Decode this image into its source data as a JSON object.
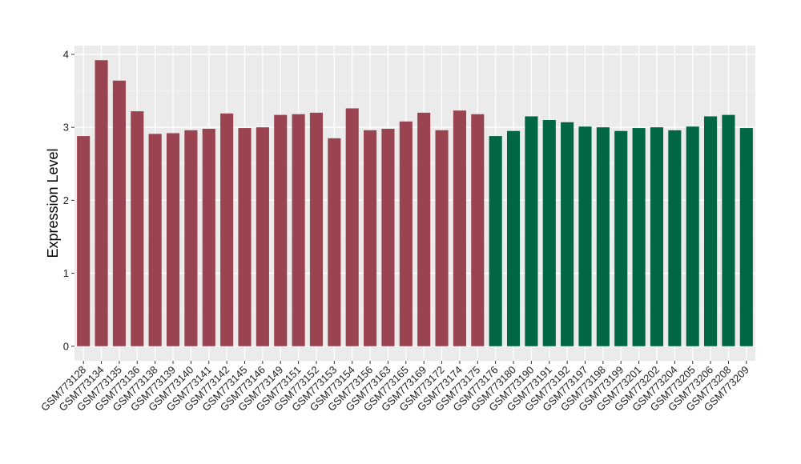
{
  "chart_data": {
    "type": "bar",
    "title": "",
    "xlabel": "",
    "ylabel": "Expression Level",
    "ylim": [
      -0.2,
      4.12
    ],
    "yticks": [
      0,
      1,
      2,
      3,
      4
    ],
    "grid": true,
    "background": "#ebebeb",
    "categories": [
      "GSM773128",
      "GSM773134",
      "GSM773135",
      "GSM773136",
      "GSM773138",
      "GSM773139",
      "GSM773140",
      "GSM773141",
      "GSM773142",
      "GSM773145",
      "GSM773146",
      "GSM773149",
      "GSM773151",
      "GSM773152",
      "GSM773153",
      "GSM773154",
      "GSM773156",
      "GSM773163",
      "GSM773165",
      "GSM773169",
      "GSM773172",
      "GSM773174",
      "GSM773175",
      "GSM773176",
      "GSM773180",
      "GSM773190",
      "GSM773191",
      "GSM773192",
      "GSM773197",
      "GSM773198",
      "GSM773199",
      "GSM773201",
      "GSM773202",
      "GSM773204",
      "GSM773205",
      "GSM773206",
      "GSM773208",
      "GSM773209"
    ],
    "values": [
      2.88,
      3.92,
      3.64,
      3.22,
      2.91,
      2.92,
      2.96,
      2.98,
      3.19,
      2.99,
      3.0,
      3.17,
      3.18,
      3.2,
      2.85,
      3.26,
      2.96,
      2.98,
      3.08,
      3.2,
      2.96,
      3.23,
      3.18,
      2.88,
      2.95,
      3.15,
      3.1,
      3.07,
      3.01,
      3.0,
      2.95,
      2.99,
      3.0,
      2.96,
      3.01,
      3.15,
      3.17,
      2.99
    ],
    "group_sizes": [
      23,
      15
    ],
    "group_colors": [
      "#9a4451",
      "#006644"
    ]
  }
}
